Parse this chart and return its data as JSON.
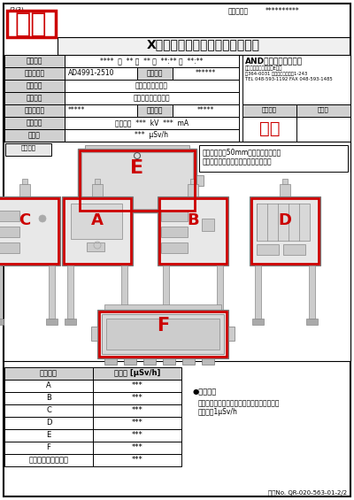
{
  "title": "X線漏洩放射線量測定結果報告書",
  "watermark_text": "見本",
  "watermark_small": "(2/3)",
  "kanri_label": "管理番号：",
  "kanri_value": "**********",
  "row1_label": "測定日時",
  "row1_value": "****  年  ** 月  ** 日  **:** ～  **:**",
  "row2_label": "検査機器式",
  "row2_value": "AD4991-2510",
  "row2_sublabel": "製造番号",
  "row2_subvalue": "******",
  "row3_label": "測定方法",
  "row3_value": "サーベイメータ法",
  "row4_label": "測定原理",
  "row4_value": "シンチレーション式",
  "row5_label": "測定器型式",
  "row5_value": "*****",
  "row5_sublabel": "管理番号",
  "row5_subvalue": "*****",
  "row6_label": "測定条件",
  "row6_value": "定格出力  ***  kV  ***  mA",
  "row7_label": "レンジ",
  "row7_value": "***  μSv/h",
  "company_name": "AND㈱エーアンドデイ",
  "company_dept": "開発・技術センター　E工部",
  "company_addr1": "〒364-0031 埼玉県北本市朝日1-243",
  "company_addr2": "TEL 048-593-1192 FAX 048-593-1485",
  "sogo_label": "総合判定",
  "sokutei_label": "測定者",
  "gokaku": "合格",
  "diagram_label": "測定箇所",
  "diagram_note1": "検査機器から50mmの位置で測定し、",
  "diagram_note2": "各測定箇所の測定最大値を記録する。",
  "table_header1": "測定箇所",
  "table_header2": "測定値 [μSv/h]",
  "table_rows": [
    [
      "A",
      "***"
    ],
    [
      "B",
      "***"
    ],
    [
      "C",
      "***"
    ],
    [
      "D",
      "***"
    ],
    [
      "E",
      "***"
    ],
    [
      "F",
      "***"
    ],
    [
      "バックグラウンド値",
      "***"
    ]
  ],
  "kijun_title": "●判定基準",
  "kijun_text1": "各測定箇所において、基準値を超えない事。",
  "kijun_text2": "基準値：1μSv/h",
  "footer": "様式No. QR-020-563-01-2/2",
  "red_color": "#cc0000",
  "gray_bg": "#d0d0d0",
  "light_gray": "#f0f0f0"
}
